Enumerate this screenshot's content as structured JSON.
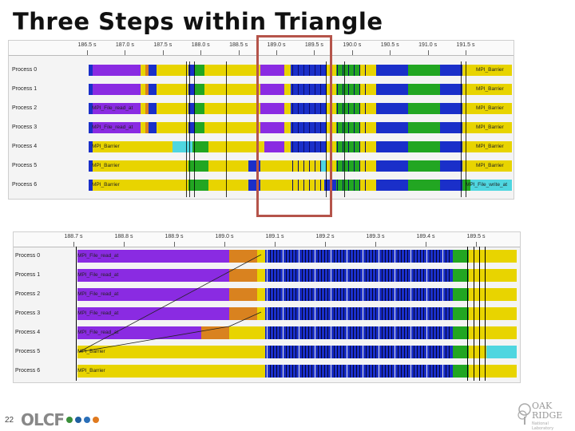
{
  "slide": {
    "title": "Three Steps within Triangle",
    "number": "22"
  },
  "top_chart": {
    "ticks": [
      "186.5 s",
      "187.0 s",
      "187.5 s",
      "188.0 s",
      "188.5 s",
      "189.0 s",
      "189.5 s",
      "190.0 s",
      "190.5 s",
      "191.0 s",
      "191.5 s"
    ],
    "rows": [
      {
        "label": "Process 0",
        "end_label": "MPI_Barrier",
        "start_label": ""
      },
      {
        "label": "Process 1",
        "end_label": "MPI_Barrier",
        "start_label": ""
      },
      {
        "label": "Process 2",
        "end_label": "MPI_Barrier",
        "start_label": "MPI_File_read_at"
      },
      {
        "label": "Process 3",
        "end_label": "MPI_Barrier",
        "start_label": "MPI_File_read_at"
      },
      {
        "label": "Process 4",
        "end_label": "MPI_Barrier",
        "start_label": "MPI_Barrier"
      },
      {
        "label": "Process 5",
        "end_label": "MPI_Barrier",
        "start_label": "MPI_Barrier"
      },
      {
        "label": "Process 6",
        "end_label": "MPI_File_write_at",
        "start_label": "MPI_Barrier"
      }
    ]
  },
  "bottom_chart": {
    "ticks": [
      "188.7 s",
      "188.8 s",
      "188.9 s",
      "189.0 s",
      "189.1 s",
      "189.2 s",
      "189.3 s",
      "189.4 s",
      "189.5 s"
    ],
    "rows": [
      {
        "label": "Process 0",
        "start_label": "MPI_File_read_at"
      },
      {
        "label": "Process 1",
        "start_label": "MPI_File_read_at"
      },
      {
        "label": "Process 2",
        "start_label": "MPI_File_read_at"
      },
      {
        "label": "Process 3",
        "start_label": "MPI_File_read_at"
      },
      {
        "label": "Process 4",
        "start_label": "MPI_File_read_at"
      },
      {
        "label": "Process 5",
        "start_label": "MPI_Barrier"
      },
      {
        "label": "Process 6",
        "start_label": "MPI_Barrier"
      }
    ]
  },
  "footer": {
    "logo_text": "OLCF",
    "dot_colors": [
      "#3a8f3a",
      "#1f5fa0",
      "#2a6fb8",
      "#e07a1f"
    ],
    "lab_logo_line1": "OAK",
    "lab_logo_line2": "RIDGE",
    "lab_logo_line3": "National Laboratory"
  },
  "colors": {
    "purple": "#8a2be2",
    "yellow": "#e8d400",
    "green": "#22a622",
    "blue": "#1a2fc9",
    "orange": "#d9821f",
    "cyan": "#4fd6e0",
    "highlight": "#b5544a"
  }
}
